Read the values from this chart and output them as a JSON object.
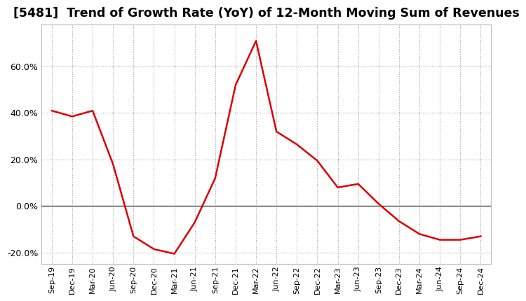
{
  "title": "[5481]  Trend of Growth Rate (YoY) of 12-Month Moving Sum of Revenues",
  "title_fontsize": 12.5,
  "title_fontweight": "bold",
  "line_color": "#dd0000",
  "line_width": 1.8,
  "background_color": "#ffffff",
  "plot_bg_color": "#ffffff",
  "grid_color": "#999999",
  "ylim": [
    -0.25,
    0.78
  ],
  "yticks": [
    -0.2,
    0.0,
    0.2,
    0.4,
    0.6
  ],
  "dates": [
    "Sep-19",
    "Dec-19",
    "Mar-20",
    "Jun-20",
    "Sep-20",
    "Dec-20",
    "Mar-21",
    "Jun-21",
    "Sep-21",
    "Dec-21",
    "Mar-22",
    "Jun-22",
    "Sep-22",
    "Dec-22",
    "Mar-23",
    "Jun-23",
    "Sep-23",
    "Dec-23",
    "Mar-24",
    "Jun-24",
    "Sep-24",
    "Dec-24"
  ],
  "values": [
    0.41,
    0.385,
    0.41,
    0.18,
    -0.13,
    -0.185,
    -0.205,
    -0.07,
    0.12,
    0.52,
    0.71,
    0.32,
    0.265,
    0.195,
    0.08,
    0.095,
    0.01,
    -0.065,
    -0.12,
    -0.145,
    -0.145,
    -0.13
  ]
}
